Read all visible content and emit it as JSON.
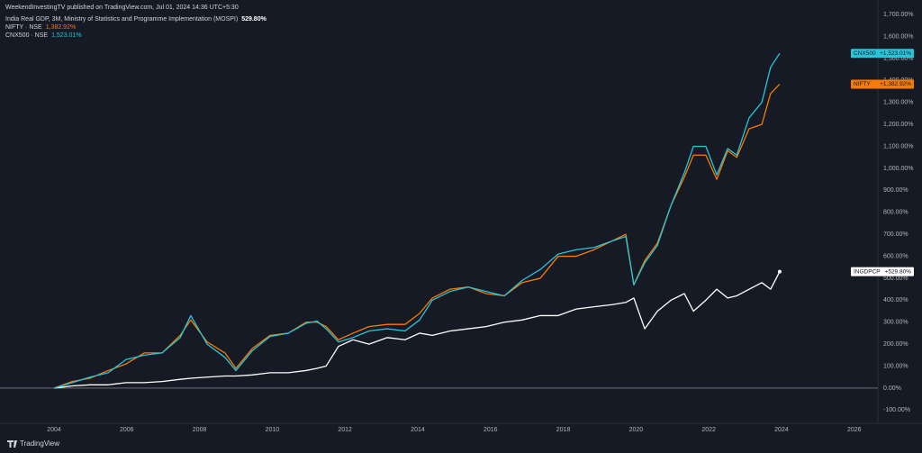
{
  "header": {
    "publisher": "WeekendInvestingTV published on TradingView.com, Jul 01, 2024 14:36 UTC+5:30",
    "footer": "TradingView"
  },
  "chart_data": {
    "type": "line",
    "x": [
      2004.0,
      2004.5,
      2004.99,
      2005.49,
      2005.98,
      2006.48,
      2006.97,
      2007.47,
      2007.76,
      2008.21,
      2008.7,
      2009.0,
      2009.45,
      2009.94,
      2010.44,
      2010.93,
      2011.23,
      2011.48,
      2011.82,
      2012.22,
      2012.66,
      2013.16,
      2013.65,
      2014.05,
      2014.4,
      2014.89,
      2015.39,
      2015.88,
      2016.38,
      2016.87,
      2017.37,
      2017.86,
      2018.36,
      2018.85,
      2019.35,
      2019.72,
      2019.94,
      2020.24,
      2020.59,
      2020.96,
      2021.33,
      2021.58,
      2021.92,
      2022.22,
      2022.52,
      2022.77,
      2023.11,
      2023.46,
      2023.7,
      2023.95
    ],
    "series": [
      {
        "name": "India Real GDP, 3M, Ministry of Statistics and Programme Implementation (MOSPI)",
        "legend_value": "529.80%",
        "tag": "INGDPCP",
        "tag_value": "+529.80%",
        "color": "#ffffff",
        "values": [
          0,
          10,
          15,
          15,
          25,
          25,
          30,
          40,
          45,
          50,
          55,
          55,
          60,
          70,
          70,
          80,
          90,
          100,
          190,
          220,
          200,
          230,
          220,
          250,
          240,
          260,
          270,
          280,
          300,
          310,
          330,
          330,
          360,
          370,
          380,
          390,
          410,
          270,
          350,
          400,
          430,
          350,
          400,
          450,
          410,
          420,
          450,
          480,
          450,
          529.8
        ]
      },
      {
        "name": "NIFTY · NSE",
        "legend_value": "1,382.92%",
        "tag": "NIFTY",
        "tag_value": "+1,382.92%",
        "color": "#f57c00",
        "values": [
          0,
          30,
          45,
          80,
          110,
          160,
          160,
          240,
          310,
          210,
          160,
          90,
          180,
          240,
          250,
          300,
          300,
          280,
          220,
          250,
          280,
          290,
          290,
          340,
          410,
          450,
          460,
          430,
          420,
          480,
          500,
          600,
          600,
          630,
          670,
          700,
          470,
          580,
          660,
          830,
          960,
          1060,
          1060,
          950,
          1080,
          1050,
          1180,
          1200,
          1340,
          1382.92
        ]
      },
      {
        "name": "CNX500 · NSE",
        "legend_value": "1,523.01%",
        "tag": "CNX500",
        "tag_value": "+1,523.01%",
        "color": "#26c6da",
        "values": [
          0,
          25,
          50,
          70,
          130,
          150,
          160,
          230,
          330,
          200,
          140,
          80,
          170,
          235,
          250,
          295,
          305,
          270,
          210,
          230,
          260,
          270,
          260,
          310,
          400,
          440,
          460,
          440,
          420,
          490,
          540,
          610,
          630,
          640,
          670,
          690,
          470,
          570,
          650,
          830,
          980,
          1100,
          1100,
          970,
          1090,
          1060,
          1230,
          1300,
          1460,
          1523.01
        ]
      }
    ],
    "xlim": [
      2002.515,
      2026.65
    ],
    "ylim": [
      -160,
      1725
    ],
    "xticks": [
      2004,
      2006,
      2008,
      2010,
      2012,
      2014,
      2016,
      2018,
      2020,
      2022,
      2024,
      2026
    ],
    "yticks": [
      {
        "value": -100,
        "label": "-100.00%"
      },
      {
        "value": 0,
        "label": "0.00%"
      },
      {
        "value": 100,
        "label": "100.00%"
      },
      {
        "value": 200,
        "label": "200.00%"
      },
      {
        "value": 300,
        "label": "300.00%"
      },
      {
        "value": 400,
        "label": "400.00%"
      },
      {
        "value": 500,
        "label": "500.00%"
      },
      {
        "value": 600,
        "label": "600.00%"
      },
      {
        "value": 700,
        "label": "700.00%"
      },
      {
        "value": 800,
        "label": "800.00%"
      },
      {
        "value": 900,
        "label": "900.00%"
      },
      {
        "value": 1000,
        "label": "1,000.00%"
      },
      {
        "value": 1100,
        "label": "1,100.00%"
      },
      {
        "value": 1200,
        "label": "1,200.00%"
      },
      {
        "value": 1300,
        "label": "1,300.00%"
      },
      {
        "value": 1400,
        "label": "1,400.00%"
      },
      {
        "value": 1500,
        "label": "1,500.00%"
      },
      {
        "value": 1600,
        "label": "1,600.00%"
      },
      {
        "value": 1700,
        "label": "1,700.00%"
      }
    ]
  }
}
